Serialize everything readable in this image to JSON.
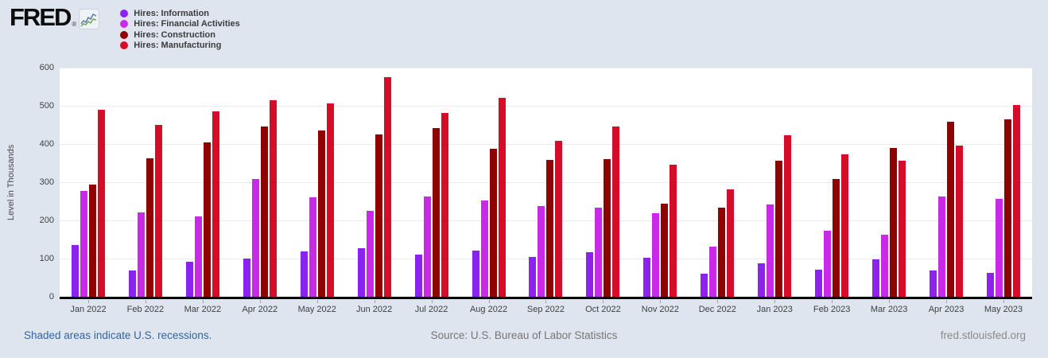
{
  "header": {
    "logo_text": "FRED",
    "logo_registered": "®"
  },
  "legend": {
    "items": [
      {
        "label": "Hires: Information",
        "color": "#8d22f0"
      },
      {
        "label": "Hires: Financial Activities",
        "color": "#cb29e8"
      },
      {
        "label": "Hires: Construction",
        "color": "#8f0303"
      },
      {
        "label": "Hires: Manufacturing",
        "color": "#d60c29"
      }
    ]
  },
  "chart_data": {
    "type": "bar",
    "title": "",
    "xlabel": "",
    "ylabel": "Level in Thousands",
    "ylim": [
      0,
      600
    ],
    "yticks": [
      0,
      100,
      200,
      300,
      400,
      500,
      600
    ],
    "grid": true,
    "legend_position": "top-left",
    "categories": [
      "Jan 2022",
      "Feb 2022",
      "Mar 2022",
      "Apr 2022",
      "May 2022",
      "Jun 2022",
      "Jul 2022",
      "Aug 2022",
      "Sep 2022",
      "Oct 2022",
      "Nov 2022",
      "Dec 2022",
      "Jan 2023",
      "Feb 2023",
      "Mar 2023",
      "Apr 2023",
      "May 2023"
    ],
    "series": [
      {
        "name": "Hires: Information",
        "color": "#8d22f0",
        "values": [
          136,
          68,
          92,
          100,
          119,
          128,
          110,
          120,
          104,
          117,
          102,
          60,
          87,
          71,
          97,
          68,
          62
        ]
      },
      {
        "name": "Hires: Financial Activities",
        "color": "#cb29e8",
        "values": [
          278,
          220,
          210,
          308,
          260,
          224,
          262,
          253,
          237,
          234,
          218,
          131,
          241,
          173,
          163,
          262,
          257
        ]
      },
      {
        "name": "Hires: Construction",
        "color": "#8f0303",
        "values": [
          294,
          363,
          405,
          446,
          435,
          426,
          441,
          387,
          358,
          361,
          243,
          233,
          357,
          309,
          389,
          459,
          464
        ]
      },
      {
        "name": "Hires: Manufacturing",
        "color": "#d60c29",
        "values": [
          490,
          451,
          486,
          514,
          507,
          574,
          482,
          521,
          408,
          445,
          345,
          281,
          423,
          372,
          356,
          396,
          502
        ]
      }
    ]
  },
  "footer": {
    "recession_note": "Shaded areas indicate U.S. recessions.",
    "source": "Source: U.S. Bureau of Labor Statistics",
    "site": "fred.stlouisfed.org"
  }
}
